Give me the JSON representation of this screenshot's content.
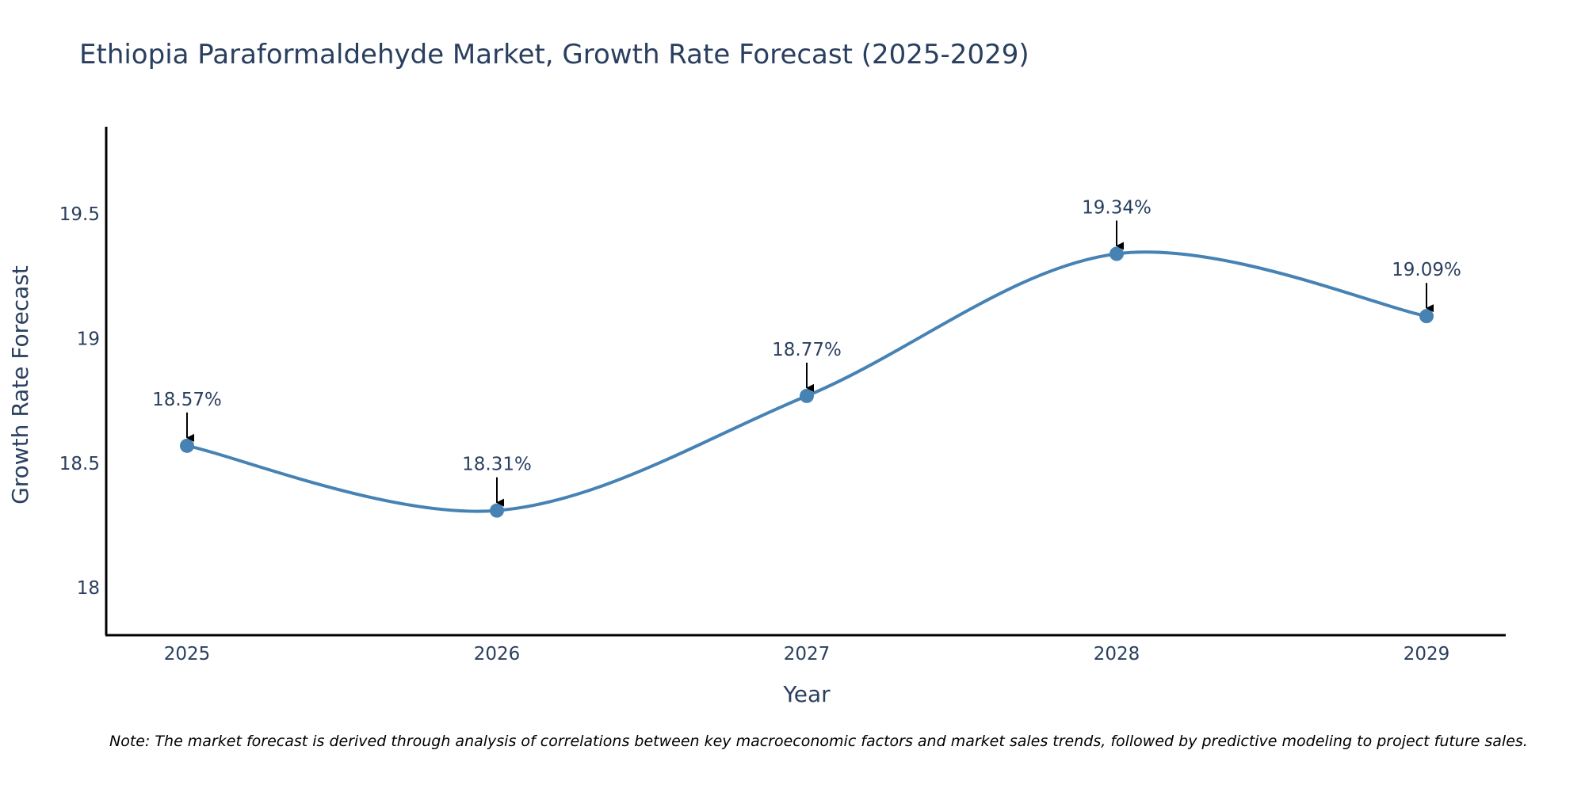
{
  "colors": {
    "line": "#4682b4",
    "marker": "#4682b4",
    "text": "#2a3f5f",
    "axis": "#000000",
    "arrow": "#000000"
  },
  "chart_data": {
    "type": "line",
    "title": "Ethiopia Paraformaldehyde Market, Growth Rate Forecast (2025-2029)",
    "xlabel": "Year",
    "ylabel": "Growth Rate Forecast",
    "x": [
      "2025",
      "2026",
      "2027",
      "2028",
      "2029"
    ],
    "series": [
      {
        "name": "Growth Rate Forecast",
        "values": [
          18.57,
          18.31,
          18.77,
          19.34,
          19.09
        ],
        "labels": [
          "18.57%",
          "18.31%",
          "18.77%",
          "19.34%",
          "19.09%"
        ]
      }
    ],
    "ylim": [
      17.81,
      19.85
    ],
    "yticks": [
      18,
      18.5,
      19,
      19.5
    ],
    "ytick_labels": [
      "18",
      "18.5",
      "19",
      "19.5"
    ],
    "line_shape": "spline",
    "grid": false,
    "legend": "none",
    "note": "Note: The market forecast is derived through analysis of correlations between key macroeconomic factors and market sales trends, followed by predictive modeling to project future sales."
  }
}
